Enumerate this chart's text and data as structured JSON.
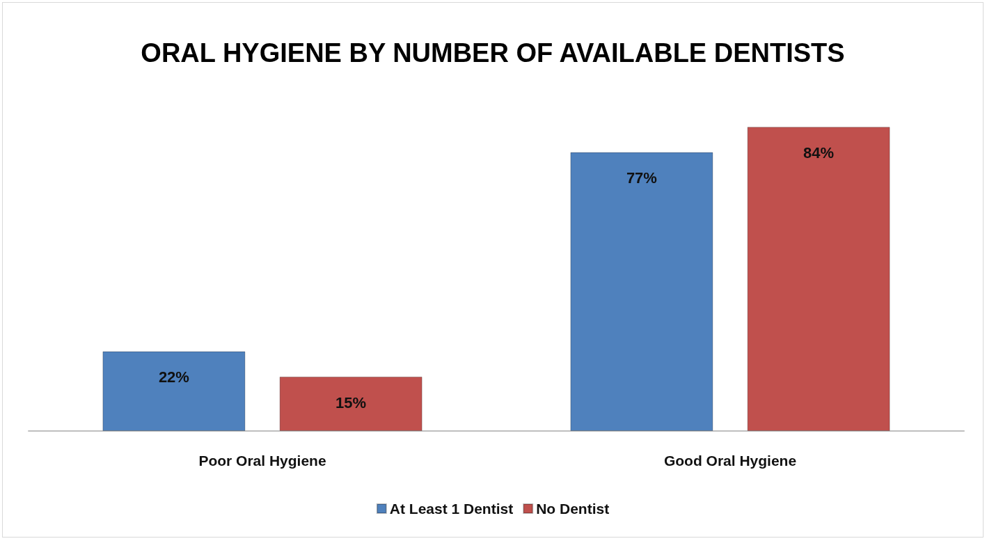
{
  "chart_data": {
    "type": "bar",
    "title": "ORAL HYGIENE BY NUMBER OF AVAILABLE DENTISTS",
    "categories": [
      "Poor Oral Hygiene",
      "Good Oral Hygiene"
    ],
    "series": [
      {
        "name": "At Least 1 Dentist",
        "color": "#4f81bd",
        "values": [
          22,
          77
        ],
        "value_labels": [
          "22%",
          "77%"
        ]
      },
      {
        "name": "No Dentist",
        "color": "#c0504d",
        "values": [
          15,
          84
        ],
        "value_labels": [
          "15%",
          "84%"
        ]
      }
    ],
    "legend": "bottom"
  }
}
